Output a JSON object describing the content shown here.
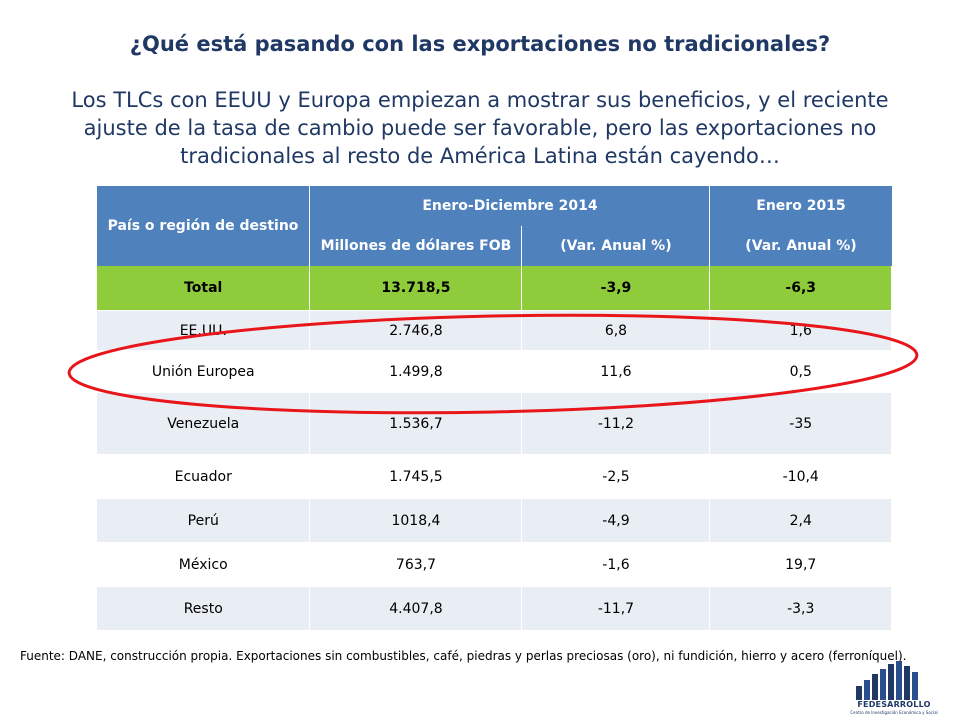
{
  "title": "¿Qué está pasando con las exportaciones no tradicionales?",
  "subtitle": "Los TLCs con EEUU y Europa empiezan a mostrar sus beneficios, y el reciente ajuste de la tasa de cambio puede ser favorable, pero las exportaciones no tradicionales al resto de América Latina están cayendo…",
  "table": {
    "header": {
      "country": "País o región de destino",
      "period_2014": "Enero-Diciembre 2014",
      "period_2015": "Enero 2015",
      "millions": "Millones de dólares FOB",
      "var_2014": "(Var. Anual %)",
      "var_2015": "(Var. Anual %)"
    },
    "rows": [
      {
        "country": "Total",
        "millions": "13.718,5",
        "var2014": "-3,9",
        "var2015": "-6,3"
      },
      {
        "country": "EE.UU.",
        "millions": "2.746,8",
        "var2014": "6,8",
        "var2015": "1,6"
      },
      {
        "country": "Unión Europea",
        "millions": "1.499,8",
        "var2014": "11,6",
        "var2015": "0,5"
      },
      {
        "country": "Venezuela",
        "millions": "1.536,7",
        "var2014": "-11,2",
        "var2015": "-35"
      },
      {
        "country": "Ecuador",
        "millions": "1.745,5",
        "var2014": "-2,5",
        "var2015": "-10,4"
      },
      {
        "country": "Perú",
        "millions": "1018,4",
        "var2014": "-4,9",
        "var2015": "2,4"
      },
      {
        "country": "México",
        "millions": "763,7",
        "var2014": "-1,6",
        "var2015": "19,7"
      },
      {
        "country": "Resto",
        "millions": "4.407,8",
        "var2014": "-11,7",
        "var2015": "-3,3"
      }
    ]
  },
  "footnote": "Fuente: DANE, construcción propia. Exportaciones sin combustibles, café, piedras y perlas preciosas (oro), ni fundición, hierro y acero (ferroníquel).",
  "logo": {
    "name": "FEDESARROLLO",
    "tagline": "Centro de Investigación Económica y Social"
  },
  "colors": {
    "title": "#1f3864",
    "header_bg": "#4f81bd",
    "total_bg": "#8fcc3c",
    "row_alt": "#e9edf4",
    "highlight_ellipse": "#e8161b"
  }
}
